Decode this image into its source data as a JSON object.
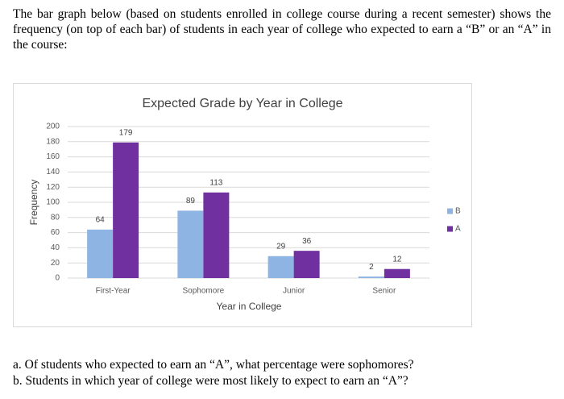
{
  "intro": "The bar graph below (based on students enrolled in college course during a recent semester) shows the frequency (on top of each bar) of students in each year of college who expected to earn a “B” or an “A” in the course:",
  "chart_data": {
    "type": "bar",
    "title": "Expected Grade by Year in College",
    "x_label": "Year in College",
    "y_label": "Frequency",
    "categories": [
      "First-Year",
      "Sophomore",
      "Junior",
      "Senior"
    ],
    "series": [
      {
        "name": "B",
        "color": "#8eb4e3",
        "values": [
          64,
          89,
          29,
          2
        ]
      },
      {
        "name": "A",
        "color": "#7030a0",
        "values": [
          179,
          113,
          36,
          12
        ]
      }
    ],
    "ylim": [
      0,
      200
    ],
    "yticks": [
      0,
      20,
      40,
      60,
      80,
      100,
      120,
      140,
      160,
      180,
      200
    ],
    "grid": true,
    "legend": "right"
  },
  "questions": [
    "a. Of students who expected to earn an “A”, what percentage were sophomores?",
    "b. Students in which year of college were most likely to expect to earn an “A”?"
  ]
}
